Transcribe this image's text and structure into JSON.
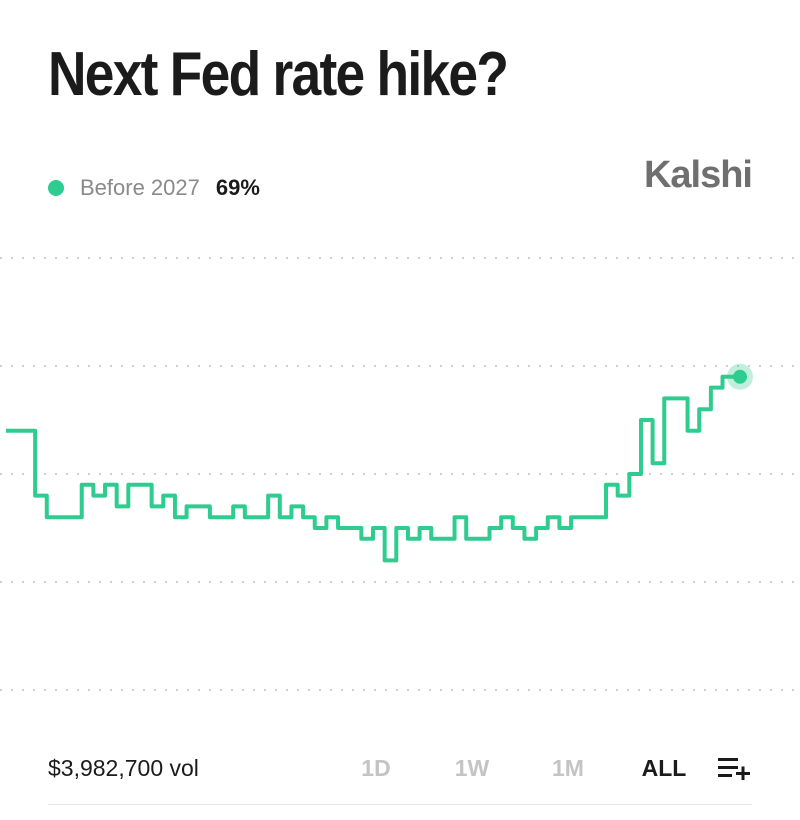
{
  "title": "Next Fed rate hike?",
  "brand": "Kalshi",
  "legend": {
    "name": "Before 2027",
    "value": "69%"
  },
  "colors": {
    "series": "#2ecc8f",
    "grid": "#cfcfcf",
    "text": "#1b1b1b",
    "muted": "#8a8a8a"
  },
  "footer": {
    "volume": "$3,982,700 vol",
    "ranges": [
      {
        "label": "1D",
        "active": false
      },
      {
        "label": "1W",
        "active": false
      },
      {
        "label": "1M",
        "active": false
      },
      {
        "label": "ALL",
        "active": true
      }
    ],
    "menu_icon": "list-add-icon"
  },
  "chart_data": {
    "type": "line",
    "series": [
      {
        "name": "Before 2027",
        "values": [
          64,
          64,
          64,
          58,
          56,
          56,
          56,
          59,
          58,
          59,
          57,
          59,
          59,
          57,
          58,
          56,
          57,
          57,
          56,
          56,
          57,
          56,
          56,
          58,
          56,
          57,
          56,
          55,
          56,
          55,
          55,
          54,
          55,
          52,
          55,
          54,
          55,
          54,
          54,
          56,
          54,
          54,
          55,
          56,
          55,
          54,
          55,
          56,
          55,
          56,
          56,
          56,
          59,
          58,
          60,
          65,
          61,
          67,
          67,
          64,
          66,
          68,
          69,
          69
        ]
      }
    ],
    "current_value": 69,
    "grid": true,
    "gridlines": 5,
    "legend_position": "top-left"
  }
}
